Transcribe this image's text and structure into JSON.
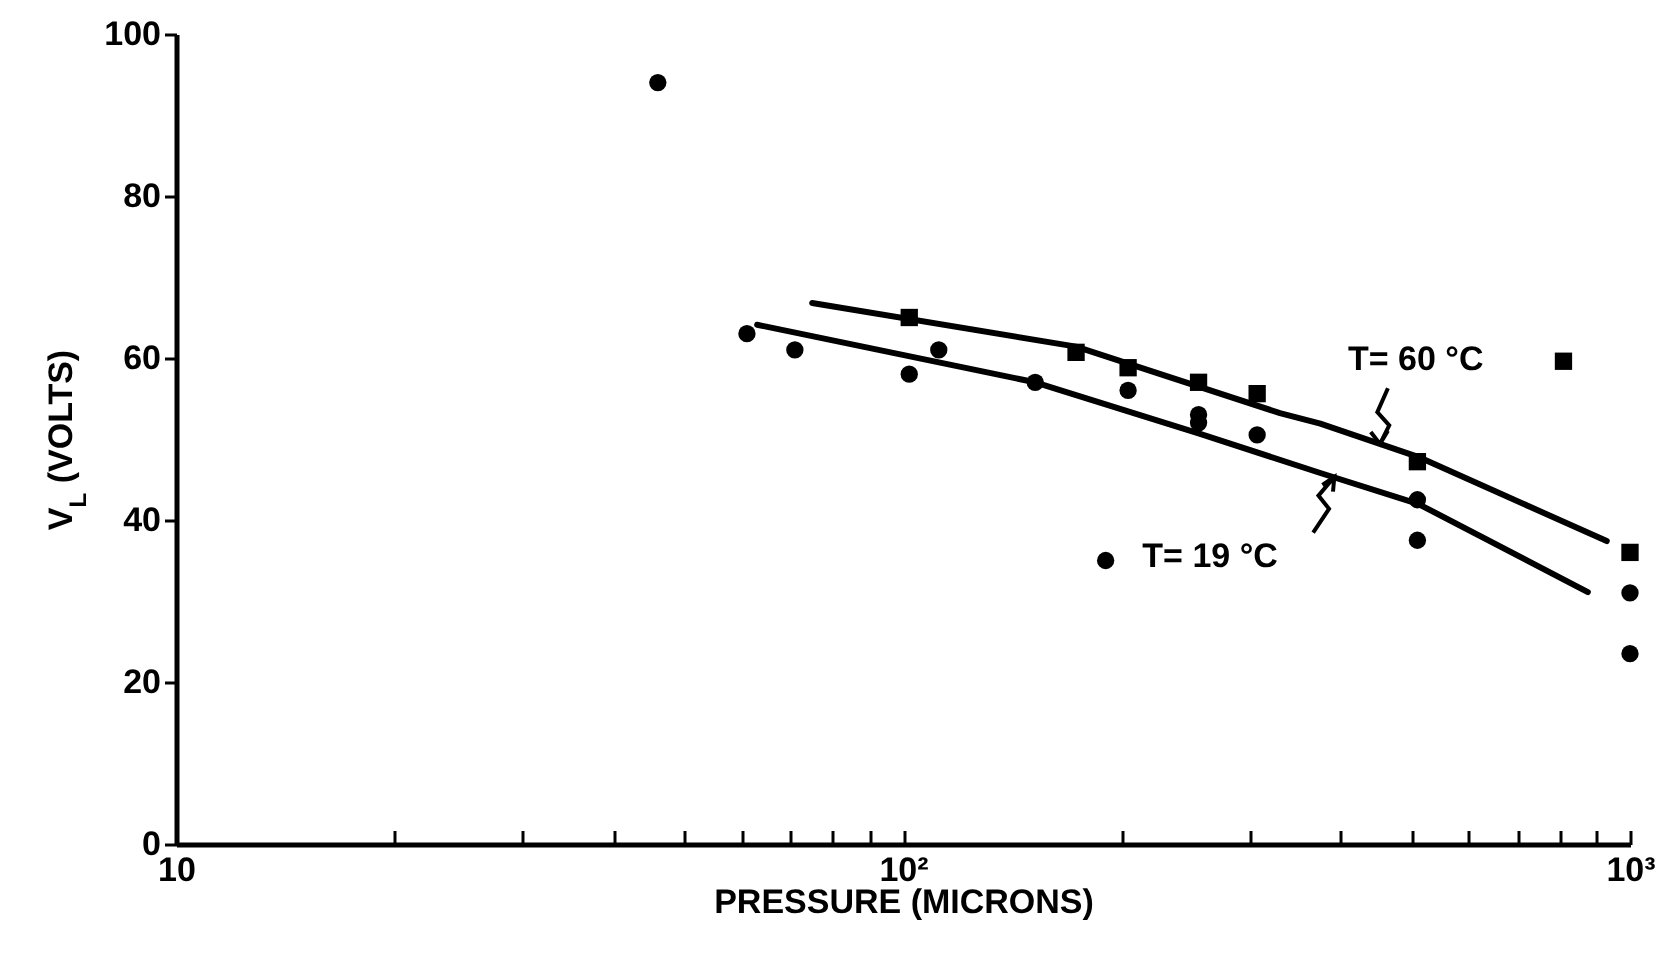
{
  "chart_data": {
    "type": "scatter",
    "xlabel": "PRESSURE (MICRONS)",
    "ylabel": "V$_{L}$ (VOLTS)",
    "log": "x",
    "xlim": [
      10,
      1000
    ],
    "ylim": [
      0,
      100
    ],
    "xticks": [
      {
        "value": 10,
        "label": "10"
      },
      {
        "value": 20,
        "label": null
      },
      {
        "value": 30,
        "label": null
      },
      {
        "value": 40,
        "label": null
      },
      {
        "value": 50,
        "label": null
      },
      {
        "value": 60,
        "label": null
      },
      {
        "value": 70,
        "label": null
      },
      {
        "value": 80,
        "label": null
      },
      {
        "value": 90,
        "label": null
      },
      {
        "value": 100,
        "label": "10²"
      },
      {
        "value": 200,
        "label": null
      },
      {
        "value": 300,
        "label": null
      },
      {
        "value": 400,
        "label": null
      },
      {
        "value": 500,
        "label": null
      },
      {
        "value": 600,
        "label": null
      },
      {
        "value": 700,
        "label": null
      },
      {
        "value": 800,
        "label": null
      },
      {
        "value": 900,
        "label": null
      },
      {
        "value": 1000,
        "label": "10³"
      }
    ],
    "yticks": [
      0,
      20,
      40,
      60,
      80,
      100
    ],
    "grid": false,
    "series": [
      {
        "type": "line",
        "color": "#000000",
        "marker": "none",
        "x": [
          75,
          173,
          330,
          375,
          511,
          929
        ],
        "values": [
          66.8,
          61.4,
          53.2,
          51.9,
          47.8,
          37.4
        ]
      },
      {
        "type": "line",
        "color": "#000000",
        "marker": "none",
        "x": [
          63,
          152,
          255,
          375,
          511,
          875
        ],
        "values": [
          64.1,
          57.0,
          50.7,
          45.8,
          42.0,
          31.1
        ]
      },
      {
        "color": "#000000",
        "marker": "circle",
        "x": [
          46,
          61,
          71,
          102,
          112,
          152,
          204,
          255,
          255,
          307,
          190,
          510,
          510,
          1000,
          1000
        ],
        "values": [
          94,
          63,
          61,
          58,
          61,
          57,
          56,
          53,
          52,
          50.5,
          35,
          42.5,
          37.5,
          31,
          23.5
        ]
      },
      {
        "color": "#000000",
        "marker": "square",
        "x": [
          102,
          173,
          204,
          255,
          307,
          510,
          810,
          1000
        ],
        "values": [
          65,
          60.7,
          58.8,
          57,
          55.6,
          47.2,
          59.6,
          36
        ]
      }
    ],
    "annotations": [
      {
        "text": "T= 60 °C",
        "x": 453,
        "y": 49.4
      },
      {
        "text": "T= 19 °C",
        "x": 392,
        "y": 45.3
      }
    ]
  }
}
